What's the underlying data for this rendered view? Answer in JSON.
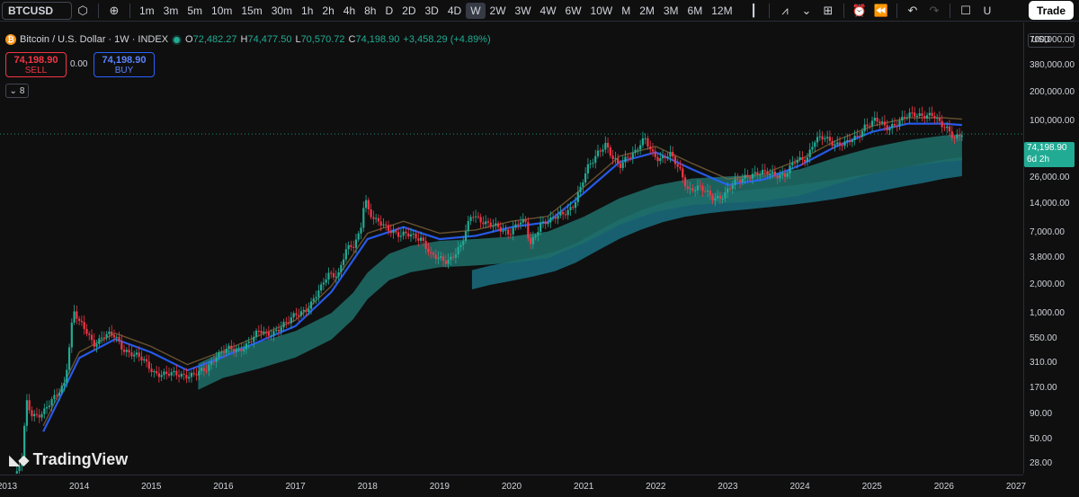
{
  "toolbar": {
    "symbol": "BTCUSD",
    "intervals": [
      "1m",
      "3m",
      "5m",
      "10m",
      "15m",
      "30m",
      "1h",
      "2h",
      "4h",
      "8h",
      "D",
      "2D",
      "3D",
      "4D",
      "W",
      "2W",
      "3W",
      "4W",
      "6W",
      "10W",
      "M",
      "2M",
      "3M",
      "6M",
      "12M"
    ],
    "active_interval": "W",
    "trade_label": "Trade",
    "extra_label": "U"
  },
  "legend": {
    "title": "Bitcoin / U.S. Dollar · 1W · INDEX",
    "logo_glyph": "₿",
    "open_key": "O",
    "open": "72,482.27",
    "high_key": "H",
    "high": "74,477.50",
    "low_key": "L",
    "low": "70,570.72",
    "close_key": "C",
    "close": "74,198.90",
    "change": "+3,458.29 (+4.89%)"
  },
  "trade_panel": {
    "sell_price": "74,198.90",
    "sell_label": "SELL",
    "spread": "0.00",
    "buy_price": "74,198.90",
    "buy_label": "BUY",
    "indicator_count": "8"
  },
  "price_axis": {
    "currency": "USD",
    "last_price": "74,198.90",
    "countdown": "6d 2h"
  },
  "watermark": "TradingView",
  "colors": {
    "up": "#22ab94",
    "down": "#f23645",
    "ma_blue": "#2962ff",
    "band_teal": "#1e6f6a",
    "band_cyan": "#1a6f80",
    "ma_orange": "#8d6e3f"
  },
  "chart_data": {
    "type": "line",
    "title": "Bitcoin / U.S. Dollar · 1W · INDEX",
    "scale": "log",
    "xlabel": "",
    "ylabel": "",
    "x_ticks": [
      "2013",
      "2014",
      "2015",
      "2016",
      "2017",
      "2018",
      "2019",
      "2020",
      "2021",
      "2022",
      "2023",
      "2024",
      "2025",
      "2026",
      "2027"
    ],
    "y_ticks": [
      "700,000.00",
      "380,000.00",
      "200,000.00",
      "100,000.00",
      "50,000.00",
      "26,000.00",
      "14,000.00",
      "7,000.00",
      "3,800.00",
      "2,000.00",
      "1,000.00",
      "550.00",
      "310.00",
      "170.00",
      "90.00",
      "50.00",
      "28.00"
    ],
    "ylim": [
      22,
      900000
    ],
    "xlim": [
      2012.9,
      2027.1
    ],
    "last_price": 74198.9,
    "series": [
      {
        "x": [
          2013.1,
          2013.2,
          2013.27,
          2013.35,
          2013.5,
          2013.65,
          2013.8,
          2013.92,
          2014.0,
          2014.1,
          2014.2,
          2014.35,
          2014.5,
          2014.6,
          2014.75,
          2014.9,
          2015.05,
          2015.2,
          2015.4,
          2015.6,
          2015.75,
          2015.9,
          2016.05,
          2016.2,
          2016.4,
          2016.5,
          2016.6,
          2016.75,
          2016.9,
          2017.0,
          2017.1,
          2017.2,
          2017.35,
          2017.45,
          2017.6,
          2017.7,
          2017.8,
          2017.9,
          2017.96,
          2018.02,
          2018.1,
          2018.2,
          2018.35,
          2018.45,
          2018.6,
          2018.75,
          2018.88,
          2018.97,
          2019.1,
          2019.3,
          2019.45,
          2019.55,
          2019.7,
          2019.85,
          2019.97,
          2020.1,
          2020.2,
          2020.25,
          2020.4,
          2020.55,
          2020.7,
          2020.85,
          2020.95,
          2021.05,
          2021.2,
          2021.3,
          2021.4,
          2021.5,
          2021.6,
          2021.7,
          2021.85,
          2021.95,
          2022.05,
          2022.2,
          2022.35,
          2022.45,
          2022.6,
          2022.8,
          2022.95,
          2023.1,
          2023.25,
          2023.45,
          2023.6,
          2023.8,
          2023.95,
          2024.1,
          2024.2,
          2024.35,
          2024.5,
          2024.65,
          2024.8,
          2024.9,
          2024.97,
          2025.05,
          2025.2,
          2025.3,
          2025.45,
          2025.6,
          2025.75,
          2025.85,
          2025.95,
          2026.05,
          2026.15,
          2026.25
        ],
        "y": [
          18,
          30,
          120,
          90,
          95,
          130,
          200,
          1100,
          800,
          650,
          500,
          600,
          580,
          450,
          380,
          320,
          250,
          230,
          240,
          230,
          260,
          380,
          420,
          420,
          550,
          650,
          620,
          700,
          800,
          1000,
          1100,
          1200,
          1800,
          2700,
          2600,
          4500,
          5000,
          7500,
          17000,
          11500,
          9000,
          8500,
          7500,
          6500,
          6500,
          6300,
          4000,
          3700,
          3600,
          5000,
          11000,
          10000,
          8300,
          7500,
          7200,
          9000,
          8500,
          5000,
          9000,
          9200,
          11000,
          13500,
          19000,
          32000,
          50000,
          58000,
          40000,
          34000,
          45000,
          47000,
          64000,
          48000,
          42000,
          44000,
          30000,
          20000,
          20000,
          16500,
          17000,
          23000,
          28000,
          28000,
          30000,
          27000,
          40000,
          43000,
          62000,
          67000,
          60000,
          58000,
          69000,
          92000,
          96000,
          102000,
          85000,
          95000,
          108000,
          118000,
          120000,
          115000,
          90000,
          85000,
          70000,
          74198
        ]
      },
      {
        "x": [
          2013.5,
          2014.0,
          2014.5,
          2015.0,
          2015.5,
          2016.0,
          2016.5,
          2017.0,
          2017.5,
          2018.0,
          2018.5,
          2019.0,
          2019.5,
          2020.0,
          2020.5,
          2021.0,
          2021.5,
          2022.0,
          2022.5,
          2023.0,
          2023.5,
          2024.0,
          2024.5,
          2025.0,
          2025.5,
          2026.0,
          2026.25
        ],
        "y": [
          60,
          350,
          550,
          400,
          260,
          360,
          520,
          750,
          1700,
          6000,
          8000,
          6000,
          6500,
          8000,
          9000,
          18000,
          38000,
          48000,
          32000,
          22000,
          25000,
          35000,
          55000,
          78000,
          95000,
          95000,
          92000
        ]
      },
      {
        "x": [
          2015.65,
          2016.0,
          2016.5,
          2017.0,
          2017.5,
          2017.8,
          2018.0,
          2018.3,
          2018.6,
          2019.0,
          2019.5,
          2020.0,
          2020.5,
          2021.0,
          2021.5,
          2022.0,
          2022.5,
          2023.0,
          2023.5,
          2024.0,
          2024.5,
          2025.0,
          2025.5,
          2026.0,
          2026.25
        ],
        "y": [
          240,
          320,
          400,
          520,
          800,
          1300,
          2100,
          3300,
          4000,
          4500,
          4700,
          5000,
          5600,
          8000,
          12500,
          17000,
          20000,
          21000,
          22000,
          25000,
          33000,
          42000,
          50000,
          56000,
          58000
        ]
      },
      {
        "x": [
          2019.45,
          2019.7,
          2020.0,
          2020.3,
          2020.6,
          2020.9,
          2021.2,
          2021.5,
          2021.8,
          2022.1,
          2022.4,
          2022.7,
          2023.0,
          2023.3,
          2023.6,
          2023.9,
          2024.2,
          2024.5,
          2024.8,
          2025.1,
          2025.4,
          2025.7,
          2026.0,
          2026.25
        ],
        "y": [
          2200,
          2450,
          2700,
          3000,
          3400,
          4200,
          5600,
          7400,
          9200,
          11000,
          12500,
          13500,
          14300,
          15000,
          15800,
          16700,
          17800,
          19200,
          21000,
          23000,
          25500,
          28000,
          31000,
          33000
        ]
      }
    ]
  }
}
